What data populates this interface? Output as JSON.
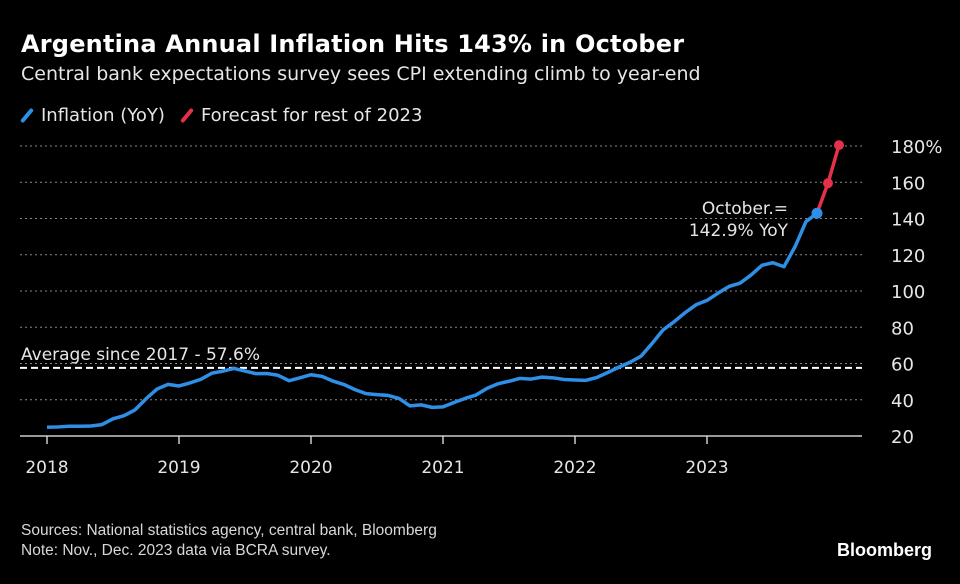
{
  "colors": {
    "inflation": "#2f8fe6",
    "forecast": "#e5304a",
    "grid": "#888888",
    "text": "#e6e6e6"
  },
  "chart_data": {
    "type": "line",
    "title": "Argentina Annual Inflation Hits 143% in October",
    "subtitle": "Central bank expectations survey sees CPI extending climb to year-end",
    "xlabel": "",
    "ylabel": "",
    "ylim": [
      20,
      180
    ],
    "yticks": [
      20,
      40,
      60,
      80,
      100,
      120,
      140,
      160,
      180
    ],
    "ytick_labels": [
      "20",
      "40",
      "60",
      "80",
      "100",
      "120",
      "140",
      "160",
      "180%"
    ],
    "xticks": [
      2018,
      2019,
      2020,
      2021,
      2022,
      2023
    ],
    "xtick_labels": [
      "2018",
      "2019",
      "2020",
      "2021",
      "2022",
      "2023"
    ],
    "grid": true,
    "legend_position": "top-left",
    "legend": [
      "Inflation (YoY)",
      "Forecast for rest of 2023"
    ],
    "series": [
      {
        "name": "Inflation (YoY)",
        "start": "2017-12",
        "values": [
          24.8,
          25.0,
          25.4,
          25.4,
          25.5,
          26.3,
          29.5,
          31.2,
          34.4,
          40.5,
          45.9,
          48.5,
          47.6,
          49.3,
          51.3,
          54.7,
          55.8,
          57.3,
          55.8,
          54.4,
          54.5,
          53.5,
          50.5,
          52.1,
          53.8,
          52.9,
          50.3,
          48.4,
          45.6,
          43.4,
          42.8,
          42.4,
          40.7,
          36.6,
          37.2,
          35.8,
          36.1,
          38.5,
          40.7,
          42.6,
          46.3,
          48.8,
          50.2,
          51.8,
          51.4,
          52.5,
          52.1,
          51.2,
          50.9,
          50.7,
          52.3,
          55.1,
          58.0,
          60.7,
          64.0,
          71.0,
          78.5,
          83.0,
          88.0,
          92.4,
          94.8,
          98.8,
          102.5,
          104.3,
          108.8,
          114.2,
          115.6,
          113.4,
          124.4,
          138.3,
          142.9
        ]
      },
      {
        "name": "Forecast for rest of 2023",
        "start": "2023-10",
        "values": [
          142.9,
          159.5,
          180.5
        ]
      }
    ],
    "reference_line": {
      "value": 57.6,
      "label": "Average since 2017 - 57.6%"
    },
    "annotation": {
      "line1": "October.=",
      "line2": "142.9% YoY"
    }
  },
  "footer": {
    "sources": "Sources: National statistics agency, central bank, Bloomberg",
    "note": "Note: Nov., Dec. 2023 data via BCRA survey.",
    "brand": "Bloomberg"
  }
}
